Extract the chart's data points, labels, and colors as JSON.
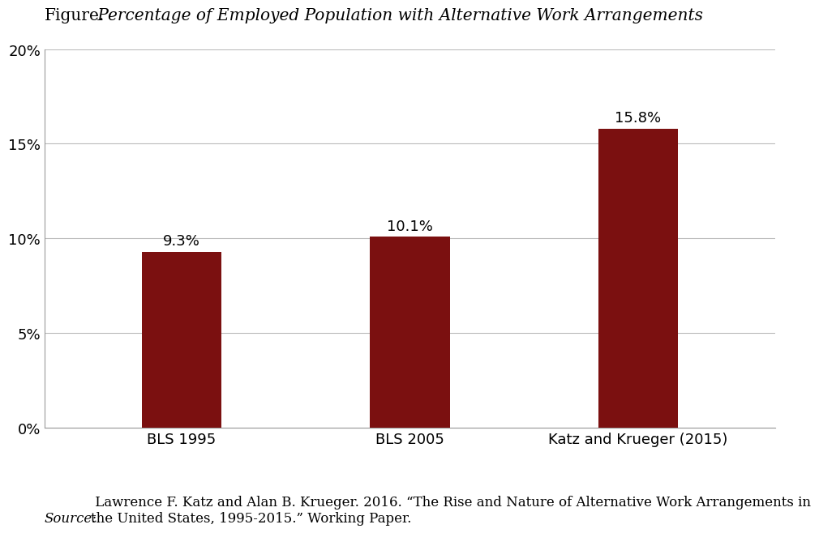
{
  "title_prefix": "Figure.",
  "title_italic": " Percentage of Employed Population with Alternative Work Arrangements",
  "categories": [
    "BLS 1995",
    "BLS 2005",
    "Katz and Krueger (2015)"
  ],
  "values": [
    9.3,
    10.1,
    15.8
  ],
  "bar_color": "#7B1010",
  "ylim": [
    0,
    20
  ],
  "yticks": [
    0,
    5,
    10,
    15,
    20
  ],
  "ytick_labels": [
    "0%",
    "5%",
    "10%",
    "15%",
    "20%"
  ],
  "value_labels": [
    "9.3%",
    "10.1%",
    "15.8%"
  ],
  "source_italic": "Source:",
  "source_text": " Lawrence F. Katz and Alan B. Krueger. 2016. “The Rise and Nature of Alternative Work Arrangements in\nthe United States, 1995-2015.” Working Paper.",
  "background_color": "#ffffff",
  "grid_color": "#bbbbbb",
  "bar_width": 0.35,
  "label_fontsize": 13,
  "tick_fontsize": 13,
  "value_fontsize": 13,
  "source_fontsize": 12,
  "title_fontsize": 14.5
}
